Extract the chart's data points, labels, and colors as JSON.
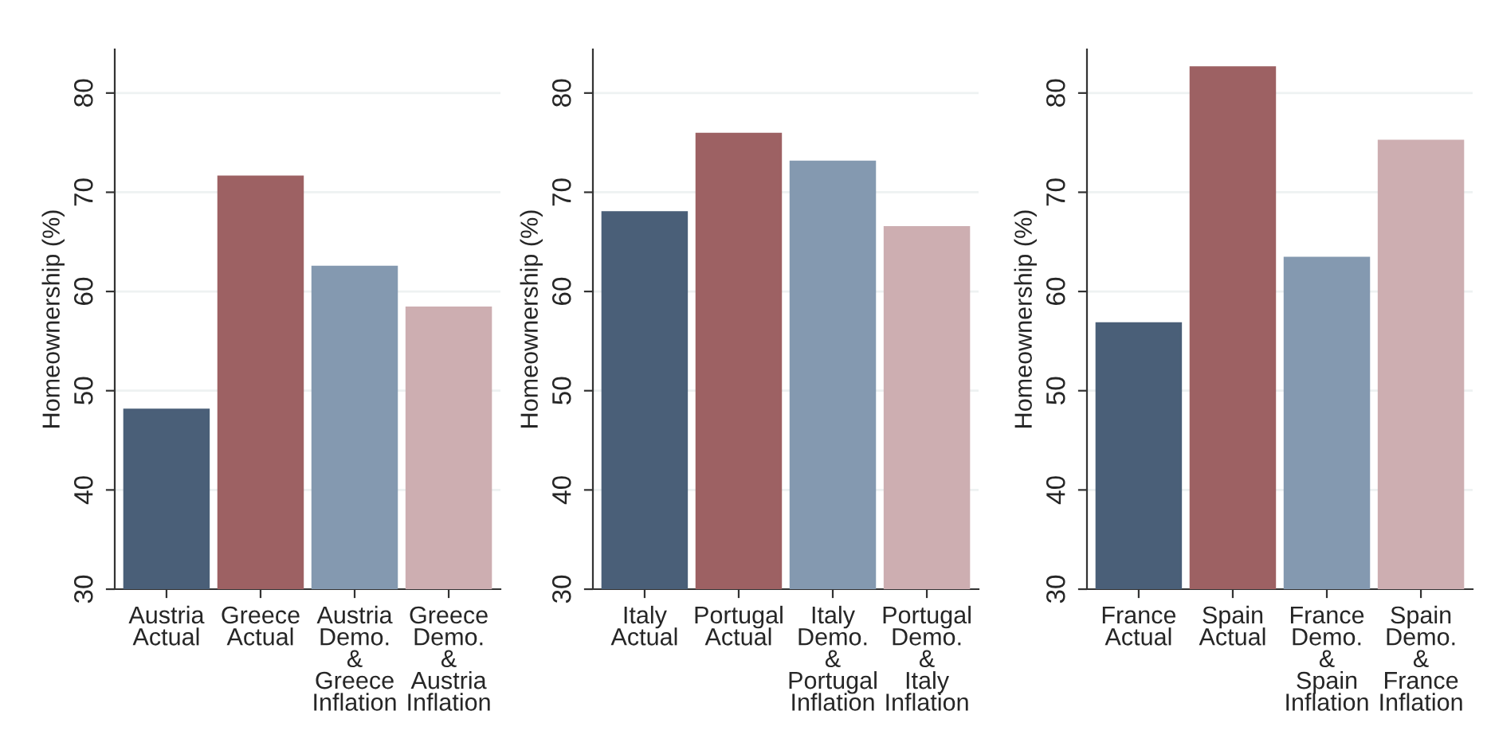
{
  "chart_data": [
    {
      "type": "bar",
      "ylabel": "Homeownership (%)",
      "categories": [
        "Austria\nActual",
        "Greece\nActual",
        "Austria\nDemo.\n&\nGreece\nInflation",
        "Greece\nDemo.\n&\nAustria\nInflation"
      ],
      "values": [
        48.1,
        71.6,
        62.5,
        58.4
      ],
      "colors": [
        "#4a5f78",
        "#9d6163",
        "#8499b0",
        "#cdaeb1"
      ],
      "ylim": [
        30,
        84.4
      ],
      "yticks": [
        30,
        40,
        50,
        60,
        70,
        80
      ],
      "grid": "y"
    },
    {
      "type": "bar",
      "ylabel": "Homeownership (%)",
      "categories": [
        "Italy\nActual",
        "Portugal\nActual",
        "Italy\nDemo.\n&\nPortugal\nInflation",
        "Portugal\nDemo.\n&\nItaly\nInflation"
      ],
      "values": [
        68.0,
        75.9,
        73.1,
        66.5
      ],
      "colors": [
        "#4a5f78",
        "#9d6163",
        "#8499b0",
        "#cdaeb1"
      ],
      "ylim": [
        30,
        84.4
      ],
      "yticks": [
        30,
        40,
        50,
        60,
        70,
        80
      ],
      "grid": "y"
    },
    {
      "type": "bar",
      "ylabel": "Homeownership (%)",
      "categories": [
        "France\nActual",
        "Spain\nActual",
        "France\nDemo.\n&\nSpain\nInflation",
        "Spain\nDemo.\n&\nFrance\nInflation"
      ],
      "values": [
        56.8,
        82.6,
        63.4,
        75.2
      ],
      "colors": [
        "#4a5f78",
        "#9d6163",
        "#8499b0",
        "#cdaeb1"
      ],
      "ylim": [
        30,
        84.4
      ],
      "yticks": [
        30,
        40,
        50,
        60,
        70,
        80
      ],
      "grid": "y"
    }
  ]
}
